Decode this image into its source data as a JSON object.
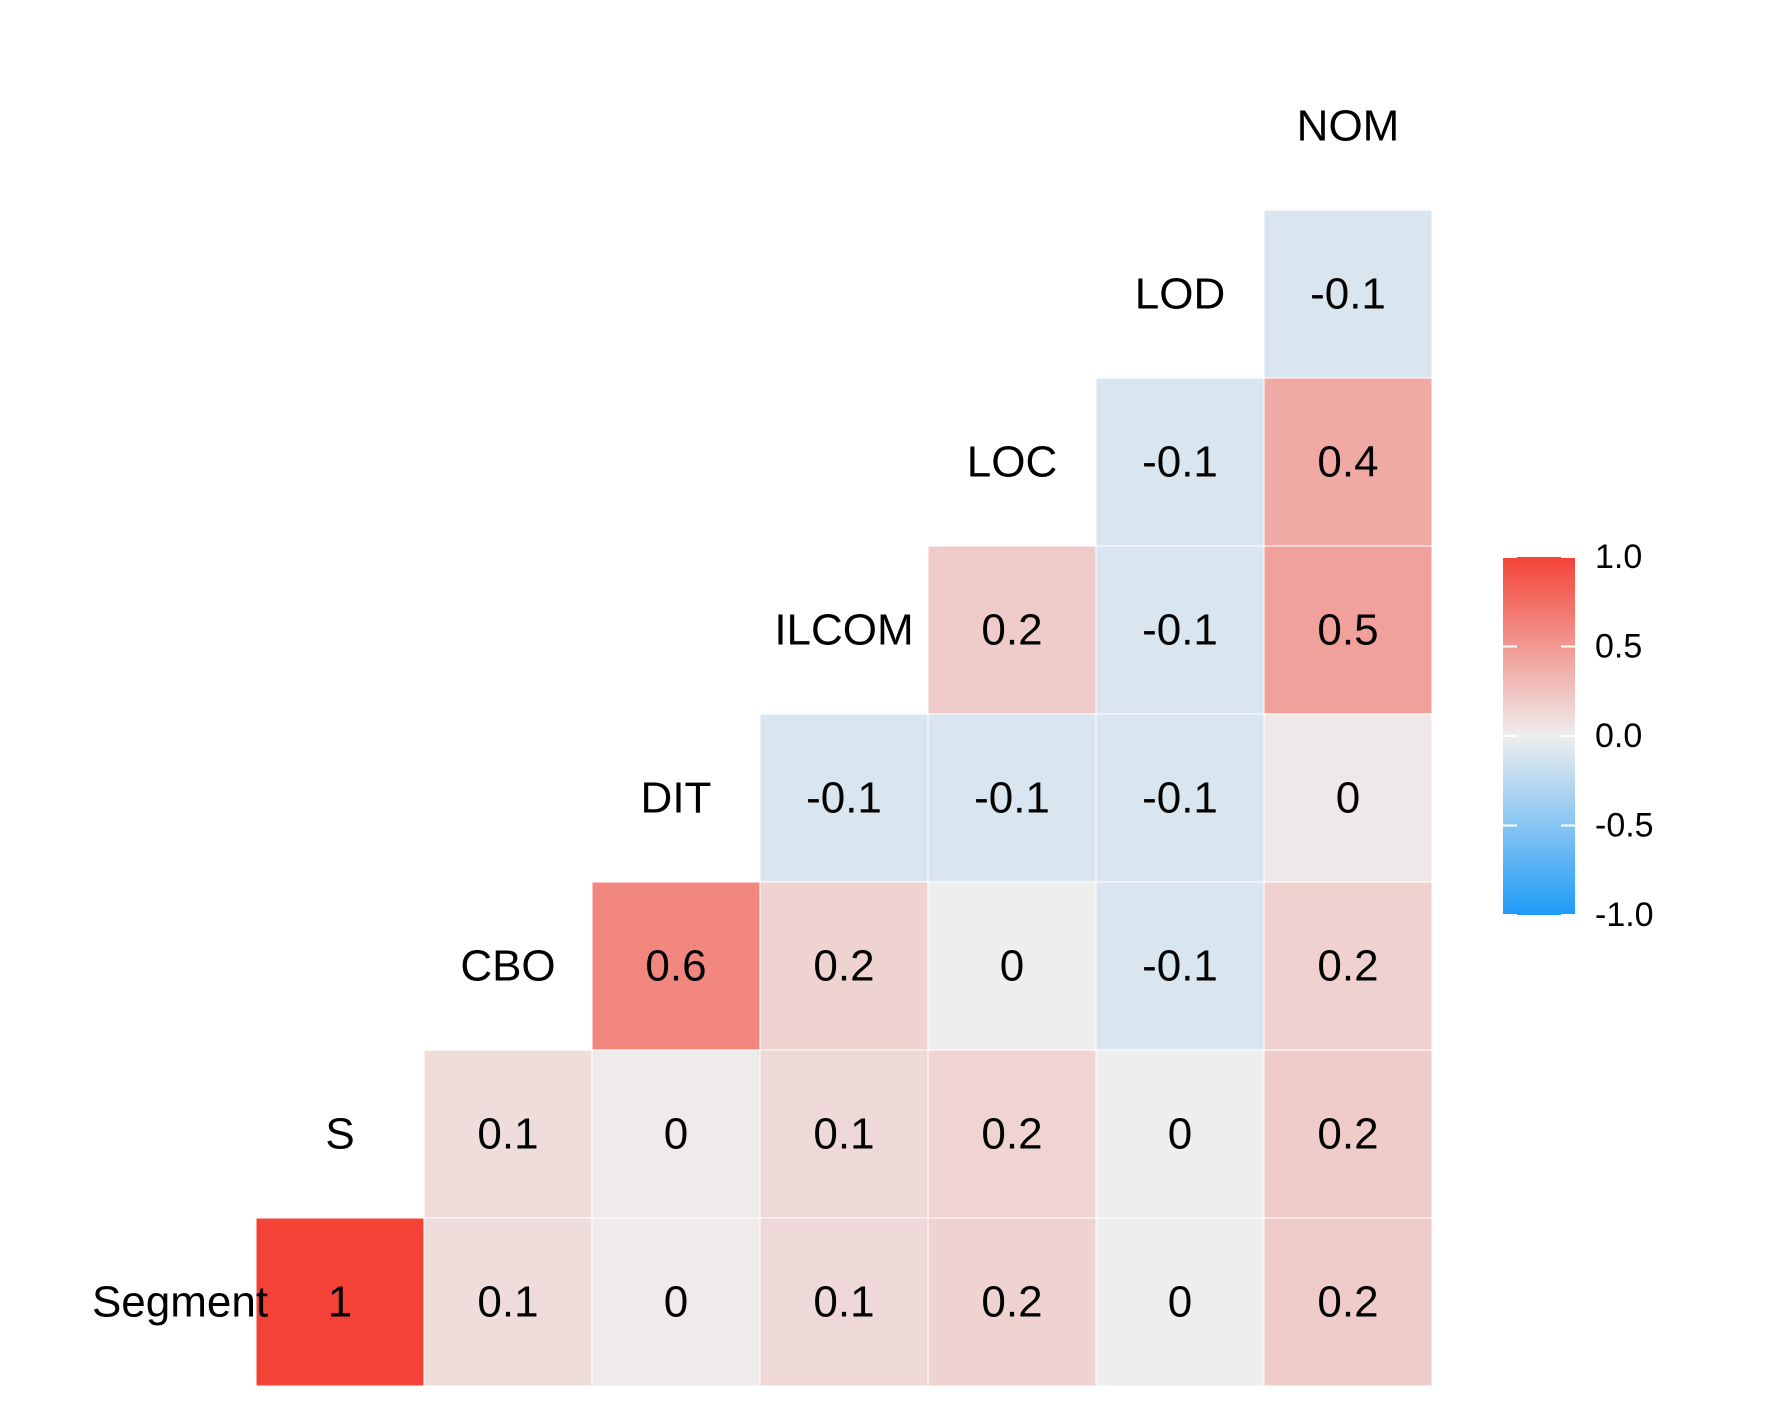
{
  "chart_data": {
    "type": "heatmap",
    "variables": [
      "Segment",
      "S",
      "CBO",
      "DIT",
      "ILCOM",
      "LOC",
      "LOD",
      "NOM"
    ],
    "cells": [
      {
        "row": "Segment",
        "col": "Segment",
        "value": 1,
        "label": "1"
      },
      {
        "row": "Segment",
        "col": "S",
        "value": 0.1,
        "label": "0.1"
      },
      {
        "row": "Segment",
        "col": "CBO",
        "value": 0.02,
        "label": "0"
      },
      {
        "row": "Segment",
        "col": "DIT",
        "value": 0.12,
        "label": "0.1"
      },
      {
        "row": "Segment",
        "col": "ILCOM",
        "value": 0.16,
        "label": "0.2"
      },
      {
        "row": "Segment",
        "col": "LOC",
        "value": 0.0,
        "label": "0"
      },
      {
        "row": "Segment",
        "col": "LOD",
        "value": 0.2,
        "label": "0.2"
      },
      {
        "row": "S",
        "col": "S",
        "value": 0.1,
        "label": "0.1"
      },
      {
        "row": "S",
        "col": "CBO",
        "value": 0.02,
        "label": "0"
      },
      {
        "row": "S",
        "col": "DIT",
        "value": 0.12,
        "label": "0.1"
      },
      {
        "row": "S",
        "col": "ILCOM",
        "value": 0.15,
        "label": "0.2"
      },
      {
        "row": "S",
        "col": "LOC",
        "value": 0.0,
        "label": "0"
      },
      {
        "row": "S",
        "col": "LOD",
        "value": 0.2,
        "label": "0.2"
      },
      {
        "row": "CBO",
        "col": "CBO",
        "value": 0.6,
        "label": "0.6"
      },
      {
        "row": "CBO",
        "col": "DIT",
        "value": 0.16,
        "label": "0.2"
      },
      {
        "row": "CBO",
        "col": "ILCOM",
        "value": 0.0,
        "label": "0"
      },
      {
        "row": "CBO",
        "col": "LOC",
        "value": -0.1,
        "label": "-0.1"
      },
      {
        "row": "CBO",
        "col": "LOD",
        "value": 0.17,
        "label": "0.2"
      },
      {
        "row": "DIT",
        "col": "DIT",
        "value": -0.1,
        "label": "-0.1"
      },
      {
        "row": "DIT",
        "col": "ILCOM",
        "value": -0.1,
        "label": "-0.1"
      },
      {
        "row": "DIT",
        "col": "LOC",
        "value": -0.1,
        "label": "-0.1"
      },
      {
        "row": "DIT",
        "col": "LOD",
        "value": 0.03,
        "label": "0"
      },
      {
        "row": "ILCOM",
        "col": "ILCOM",
        "value": 0.2,
        "label": "0.2"
      },
      {
        "row": "ILCOM",
        "col": "LOC",
        "value": -0.1,
        "label": "-0.1"
      },
      {
        "row": "ILCOM",
        "col": "LOD",
        "value": 0.45,
        "label": "0.5"
      },
      {
        "row": "LOC",
        "col": "LOC",
        "value": -0.1,
        "label": "-0.1"
      },
      {
        "row": "LOC",
        "col": "LOD",
        "value": 0.4,
        "label": "0.4"
      },
      {
        "row": "LOD",
        "col": "LOD",
        "value": -0.1,
        "label": "-0.1"
      }
    ],
    "legend": {
      "position": "right",
      "range": [
        -1.0,
        1.0
      ],
      "ticks": [
        "1.0",
        "0.5",
        "0.0",
        "-0.5",
        "-1.0"
      ],
      "tick_values": [
        1.0,
        0.5,
        0.0,
        -0.5,
        -1.0
      ],
      "colors": {
        "low": "#1E9BF7",
        "mid": "#EEEEEE",
        "high": "#F44336"
      }
    },
    "grid": false,
    "title": "",
    "xlabel": "",
    "ylabel": ""
  }
}
